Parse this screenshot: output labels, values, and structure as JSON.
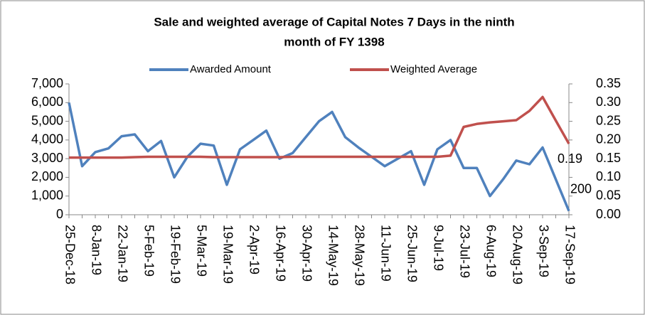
{
  "chart_data": {
    "type": "line",
    "title_lines": [
      "Sale   and weighted average of Capital Notes 7 Days  in  the ninth",
      "month  of FY 1398"
    ],
    "categories": [
      "25-Dec-18",
      null,
      "8-Jan-19",
      null,
      "22-Jan-19",
      null,
      "5-Feb-19",
      null,
      "19-Feb-19",
      null,
      "5-Mar-19",
      null,
      "19-Mar-19",
      null,
      "2-Apr-19",
      null,
      "16-Apr-19",
      null,
      "30-Apr-19",
      null,
      "14-May-19",
      null,
      "28-May-19",
      null,
      "11-Jun-19",
      null,
      "25-Jun-19",
      null,
      "9-Jul-19",
      null,
      "23-Jul-19",
      null,
      "6-Aug-19",
      null,
      "20-Aug-19",
      null,
      "3-Sep-19",
      null,
      "17-Sep-19"
    ],
    "series": [
      {
        "name": "Awarded Amount",
        "color": "#4f81bd",
        "axis": "y",
        "values": [
          6000,
          2600,
          3350,
          3550,
          4200,
          4300,
          3400,
          3950,
          2000,
          3100,
          3800,
          3700,
          1600,
          3500,
          4000,
          4500,
          3000,
          3300,
          4150,
          5000,
          5500,
          4150,
          3600,
          3100,
          2600,
          3000,
          3400,
          1600,
          3500,
          4000,
          2500,
          2500,
          1000,
          1900,
          2900,
          2700,
          3600,
          1900,
          200
        ]
      },
      {
        "name": "Weighted Average",
        "color": "#c0504d",
        "axis": "y2",
        "values": [
          0.153,
          0.153,
          0.153,
          0.153,
          0.153,
          0.154,
          0.155,
          0.155,
          0.155,
          0.155,
          0.155,
          0.154,
          0.154,
          0.154,
          0.154,
          0.154,
          0.154,
          0.155,
          0.155,
          0.155,
          0.155,
          0.155,
          0.155,
          0.155,
          0.155,
          0.155,
          0.155,
          0.155,
          0.155,
          0.158,
          0.235,
          0.243,
          0.247,
          0.25,
          0.253,
          0.278,
          0.315,
          0.252,
          0.19
        ]
      }
    ],
    "ylim": [
      0,
      7000
    ],
    "yticks": [
      0,
      {
        "value": 1000,
        "label": "1,000"
      },
      {
        "value": 2000,
        "label": "2,000"
      },
      {
        "value": 3000,
        "label": "3,000"
      },
      {
        "value": 4000,
        "label": "4,000"
      },
      {
        "value": 5000,
        "label": "5,000"
      },
      {
        "value": 6000,
        "label": "6,000"
      },
      {
        "value": 7000,
        "label": "7,000"
      }
    ],
    "y2lim": [
      0,
      0.35
    ],
    "y2ticks": [
      {
        "value": 0,
        "label": "0.00"
      },
      0.05,
      {
        "value": 0.1,
        "label": "0.10"
      },
      0.15,
      {
        "value": 0.2,
        "label": "0.20"
      },
      0.25,
      {
        "value": 0.3,
        "label": "0.30"
      },
      0.35
    ],
    "legend": "top"
  }
}
